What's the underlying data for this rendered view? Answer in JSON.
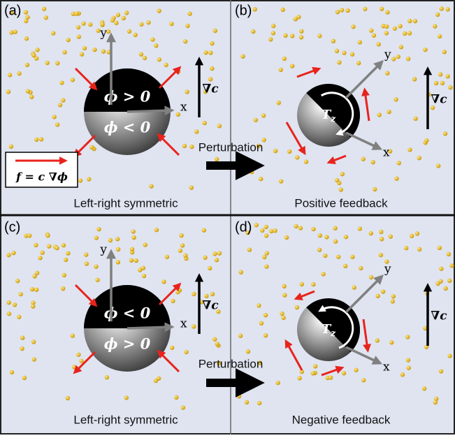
{
  "panels": [
    {
      "label": "(a)",
      "caption": "Left-right symmetric",
      "upper": "ϕ > 0",
      "lower": "ϕ < 0",
      "y_axis": "y",
      "x_axis": "x",
      "gradient": "∇c"
    },
    {
      "label": "(b)",
      "caption": "Positive feedback",
      "torque": "T",
      "torque_sub": "z",
      "y_axis": "y",
      "x_axis": "x",
      "gradient": "∇c"
    },
    {
      "label": "(c)",
      "caption": "Left-right symmetric",
      "upper": "ϕ < 0",
      "lower": "ϕ > 0",
      "y_axis": "y",
      "x_axis": "x",
      "gradient": "∇c"
    },
    {
      "label": "(d)",
      "caption": "Negative feedback",
      "torque": "T",
      "torque_sub": "z",
      "y_axis": "y",
      "x_axis": "x",
      "gradient": "∇c"
    }
  ],
  "legend": "f = c ∇ϕ",
  "perturbation": [
    "Perturbation",
    "Perturbation"
  ]
}
